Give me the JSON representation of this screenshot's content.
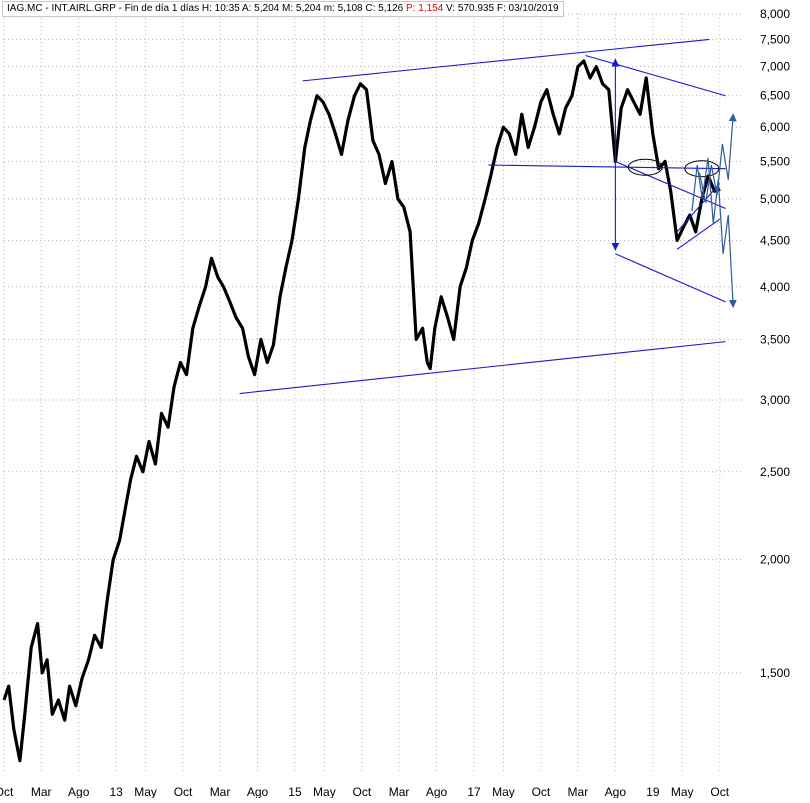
{
  "header": {
    "symbol": "IAG.MC",
    "name": "INT.AIRL.GRP",
    "interval": "Fin de día 1 días",
    "time": "H: 10:35",
    "open": "A: 5,204",
    "high": "M: 5,204",
    "low": "m: 5,108",
    "close": "C: 5,126",
    "change_label": "P",
    "change_value": ": 1,154",
    "volume": "V: 570.935",
    "date": "F: 03/10/2019"
  },
  "colors": {
    "price": "#000000",
    "trendlines": "#1a1acc",
    "projection": "#2f5b9a",
    "grid": "#b4b4b4",
    "change_negative": "#e00000"
  },
  "chart_data": {
    "type": "line",
    "y_scale": "log",
    "ylim": [
      1.16,
      8.0
    ],
    "xlim": [
      "2011-10-01",
      "2019-12-31"
    ],
    "y_ticks": [
      {
        "value": 8.0,
        "label": "8,000"
      },
      {
        "value": 7.5,
        "label": "7,500"
      },
      {
        "value": 7.0,
        "label": "7,000"
      },
      {
        "value": 6.5,
        "label": "6,500"
      },
      {
        "value": 6.0,
        "label": "6,000"
      },
      {
        "value": 5.5,
        "label": "5,500"
      },
      {
        "value": 5.0,
        "label": "5,000"
      },
      {
        "value": 4.5,
        "label": "4,500"
      },
      {
        "value": 4.0,
        "label": "4,000"
      },
      {
        "value": 3.5,
        "label": "3,500"
      },
      {
        "value": 3.0,
        "label": "3,000"
      },
      {
        "value": 2.5,
        "label": "2,500"
      },
      {
        "value": 2.0,
        "label": "2,000"
      },
      {
        "value": 1.5,
        "label": "1,500"
      }
    ],
    "x_ticks": [
      {
        "date": "2011-10-01",
        "label": "Oct"
      },
      {
        "date": "2012-03-01",
        "label": "Mar"
      },
      {
        "date": "2012-08-01",
        "label": "Ago"
      },
      {
        "date": "2013-01-01",
        "label": "13"
      },
      {
        "date": "2013-05-01",
        "label": "May"
      },
      {
        "date": "2013-10-01",
        "label": "Oct"
      },
      {
        "date": "2014-03-01",
        "label": "Mar"
      },
      {
        "date": "2014-08-01",
        "label": "Ago"
      },
      {
        "date": "2015-01-01",
        "label": "15"
      },
      {
        "date": "2015-05-01",
        "label": "May"
      },
      {
        "date": "2015-10-01",
        "label": "Oct"
      },
      {
        "date": "2016-03-01",
        "label": "Mar"
      },
      {
        "date": "2016-08-01",
        "label": "Ago"
      },
      {
        "date": "2017-01-01",
        "label": "17"
      },
      {
        "date": "2017-05-01",
        "label": "May"
      },
      {
        "date": "2017-10-01",
        "label": "Oct"
      },
      {
        "date": "2018-03-01",
        "label": "Mar"
      },
      {
        "date": "2018-08-01",
        "label": "Ago"
      },
      {
        "date": "2019-01-01",
        "label": "19"
      },
      {
        "date": "2019-05-01",
        "label": "May"
      },
      {
        "date": "2019-10-01",
        "label": "Oct"
      }
    ],
    "grid": true,
    "series": [
      {
        "x": [
          "2011-10-01",
          "2011-10-20",
          "2011-11-10",
          "2011-12-05",
          "2011-12-25",
          "2012-01-20",
          "2012-02-15",
          "2012-03-05",
          "2012-03-25",
          "2012-04-15",
          "2012-05-10",
          "2012-06-05",
          "2012-06-25",
          "2012-07-20",
          "2012-08-15",
          "2012-09-10",
          "2012-10-05",
          "2012-11-01",
          "2012-11-25",
          "2012-12-20",
          "2013-01-15",
          "2013-02-10",
          "2013-03-01",
          "2013-03-25",
          "2013-04-20",
          "2013-05-15",
          "2013-06-10",
          "2013-07-05",
          "2013-08-01",
          "2013-08-25",
          "2013-09-20",
          "2013-10-15",
          "2013-11-10",
          "2013-12-05",
          "2014-01-01",
          "2014-01-25",
          "2014-02-20",
          "2014-03-15",
          "2014-04-10",
          "2014-05-05",
          "2014-06-01",
          "2014-06-25",
          "2014-07-20",
          "2014-08-15",
          "2014-09-10",
          "2014-10-05",
          "2014-11-01",
          "2014-11-25",
          "2014-12-20",
          "2015-01-15",
          "2015-02-10",
          "2015-03-05",
          "2015-04-01",
          "2015-04-25",
          "2015-05-20",
          "2015-06-15",
          "2015-07-10",
          "2015-08-05",
          "2015-09-01",
          "2015-09-25",
          "2015-10-20",
          "2015-11-15",
          "2015-12-10",
          "2016-01-05",
          "2016-02-01",
          "2016-02-25",
          "2016-03-20",
          "2016-04-15",
          "2016-05-10",
          "2016-06-05",
          "2016-06-24",
          "2016-07-06",
          "2016-07-25",
          "2016-08-20",
          "2016-09-15",
          "2016-10-10",
          "2016-11-05",
          "2016-12-01",
          "2016-12-25",
          "2017-01-20",
          "2017-02-15",
          "2017-03-10",
          "2017-04-05",
          "2017-05-01",
          "2017-05-25",
          "2017-06-20",
          "2017-07-15",
          "2017-08-10",
          "2017-09-05",
          "2017-10-01",
          "2017-10-25",
          "2017-11-20",
          "2017-12-15",
          "2018-01-10",
          "2018-02-05",
          "2018-03-01",
          "2018-03-25",
          "2018-04-20",
          "2018-05-15",
          "2018-06-10",
          "2018-07-05",
          "2018-08-01",
          "2018-08-25",
          "2018-09-20",
          "2018-10-15",
          "2018-11-10",
          "2018-12-05",
          "2019-01-01",
          "2019-01-25",
          "2019-02-20",
          "2019-03-15",
          "2019-04-10",
          "2019-05-05",
          "2019-06-01",
          "2019-06-25",
          "2019-07-20",
          "2019-08-15",
          "2019-09-10",
          "2019-10-03"
        ],
        "y": [
          1.4,
          1.45,
          1.3,
          1.2,
          1.35,
          1.6,
          1.7,
          1.5,
          1.55,
          1.35,
          1.4,
          1.33,
          1.45,
          1.38,
          1.48,
          1.55,
          1.65,
          1.6,
          1.8,
          2.0,
          2.1,
          2.3,
          2.45,
          2.6,
          2.5,
          2.7,
          2.55,
          2.9,
          2.8,
          3.1,
          3.3,
          3.2,
          3.6,
          3.8,
          4.0,
          4.3,
          4.1,
          4.0,
          3.85,
          3.7,
          3.6,
          3.35,
          3.2,
          3.5,
          3.3,
          3.45,
          3.9,
          4.2,
          4.5,
          5.0,
          5.7,
          6.1,
          6.5,
          6.4,
          6.2,
          5.9,
          5.6,
          6.1,
          6.5,
          6.7,
          6.6,
          5.8,
          5.6,
          5.2,
          5.5,
          5.0,
          4.9,
          4.6,
          3.5,
          3.6,
          3.3,
          3.25,
          3.6,
          3.9,
          3.7,
          3.5,
          4.0,
          4.2,
          4.5,
          4.7,
          5.0,
          5.3,
          5.7,
          6.0,
          5.9,
          5.6,
          6.2,
          5.7,
          6.0,
          6.4,
          6.6,
          6.2,
          5.9,
          6.3,
          6.5,
          7.0,
          7.1,
          6.8,
          7.0,
          6.7,
          6.6,
          5.5,
          6.3,
          6.6,
          6.4,
          6.2,
          6.8,
          5.9,
          5.4,
          5.5,
          5.1,
          4.5,
          4.65,
          4.8,
          4.6,
          5.0,
          5.3,
          5.1,
          5.126
        ]
      }
    ],
    "annotations": {
      "lines": [
        {
          "x": [
            "2015-02-01",
            "2019-08-20"
          ],
          "y": [
            6.75,
            7.5
          ]
        },
        {
          "x": [
            "2014-05-20",
            "2019-10-25"
          ],
          "y": [
            3.05,
            3.48
          ]
        },
        {
          "x": [
            "2018-04-01",
            "2019-10-25"
          ],
          "y": [
            7.2,
            6.5
          ]
        },
        {
          "x": [
            "2018-08-01",
            "2019-10-25"
          ],
          "y": [
            5.5,
            4.88
          ]
        },
        {
          "x": [
            "2018-08-01",
            "2019-10-25"
          ],
          "y": [
            4.35,
            3.85
          ]
        },
        {
          "x": [
            "2017-03-01",
            "2019-10-25"
          ],
          "y": [
            5.45,
            5.4
          ]
        },
        {
          "x": [
            "2019-04-10",
            "2019-10-01"
          ],
          "y": [
            4.4,
            4.75
          ]
        },
        {
          "x": [
            "2019-04-10",
            "2019-10-01"
          ],
          "y": [
            4.6,
            5.2
          ]
        }
      ],
      "vertical_arrows": [
        {
          "x": "2018-08-01",
          "y": [
            4.35,
            7.2
          ]
        }
      ],
      "ellipses": [
        {
          "x": "2018-12-01",
          "y": 5.42
        },
        {
          "x": "2019-07-20",
          "y": 5.4
        }
      ],
      "projection_paths": [
        {
          "x": [
            "2019-06-10",
            "2019-07-01",
            "2019-07-22",
            "2019-08-14",
            "2019-09-05",
            "2019-09-25",
            "2019-10-15",
            "2019-11-05",
            "2019-11-25"
          ],
          "y": [
            4.85,
            5.45,
            5.0,
            5.55,
            4.7,
            5.25,
            4.35,
            4.8,
            3.8
          ]
        },
        {
          "x": [
            "2019-07-10",
            "2019-08-05",
            "2019-08-28",
            "2019-09-20",
            "2019-10-12",
            "2019-11-05",
            "2019-11-25"
          ],
          "y": [
            5.35,
            4.95,
            5.45,
            5.05,
            5.75,
            5.25,
            6.2
          ]
        }
      ]
    }
  }
}
